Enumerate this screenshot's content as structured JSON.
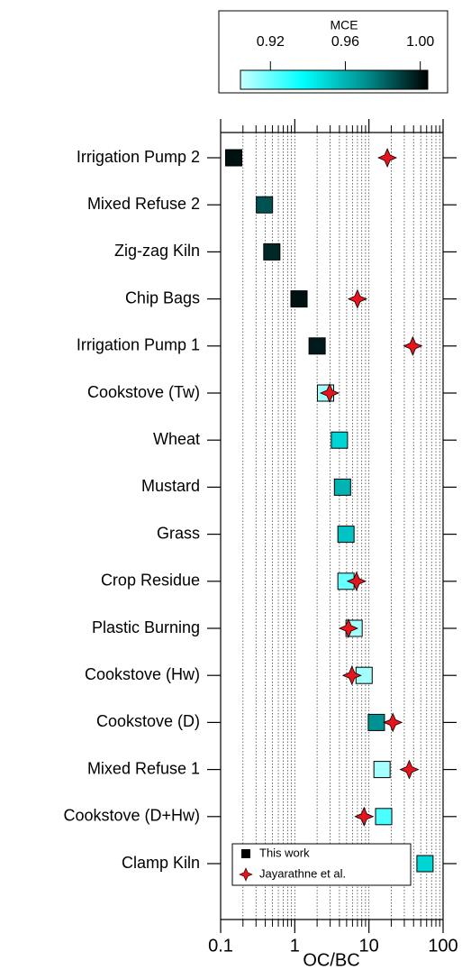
{
  "chart_data": {
    "type": "dotplot",
    "xlabel": "OC/BC",
    "log_x": true,
    "grid": true,
    "xlim": [
      0.1,
      100
    ],
    "xticks": [
      0.1,
      1,
      10,
      100
    ],
    "xminorticks": [
      0.2,
      0.3,
      0.4,
      0.5,
      0.6,
      0.7,
      0.8,
      0.9,
      2,
      3,
      4,
      5,
      6,
      7,
      8,
      9,
      20,
      30,
      40,
      50,
      60,
      70,
      80,
      90
    ],
    "categories": [
      "Irrigation Pump 2",
      "Mixed Refuse 2",
      "Zig-zag Kiln",
      "Chip Bags",
      "Irrigation Pump 1",
      "Cookstove (Tw)",
      "Wheat",
      "Mustard",
      "Grass",
      "Crop Residue",
      "Plastic Burning",
      "Cookstove (Hw)",
      "Cookstove (D)",
      "Mixed Refuse 1",
      "Cookstove (D+Hw)",
      "Clamp Kiln"
    ],
    "series": [
      {
        "name": "This work",
        "marker": "square",
        "color": "#000000",
        "values": [
          0.15,
          0.39,
          0.49,
          1.14,
          2.0,
          2.6,
          4.0,
          4.4,
          4.9,
          4.9,
          6.3,
          8.6,
          12.6,
          15,
          15.8,
          57
        ],
        "mce": [
          1.0,
          0.985,
          0.995,
          1.0,
          0.998,
          0.91,
          0.95,
          0.96,
          0.955,
          0.92,
          0.91,
          0.91,
          0.97,
          0.91,
          0.925,
          0.95
        ]
      },
      {
        "name": "Jayarathne et al.",
        "marker": "star",
        "color": "#e8141c",
        "values": [
          17.7,
          null,
          null,
          7.0,
          39,
          2.95,
          null,
          null,
          null,
          6.8,
          5.3,
          5.9,
          21,
          35,
          8.6,
          null
        ]
      }
    ],
    "legend": "bottom",
    "colorbar": {
      "label": "MCE",
      "clim": [
        0.904,
        1.004
      ],
      "ticks": [
        0.92,
        0.96,
        {
          "value": 1,
          "label": "1.00"
        }
      ],
      "colors": [
        "#c8ffff",
        "#00ffff",
        "#009090",
        "#000000"
      ]
    }
  }
}
